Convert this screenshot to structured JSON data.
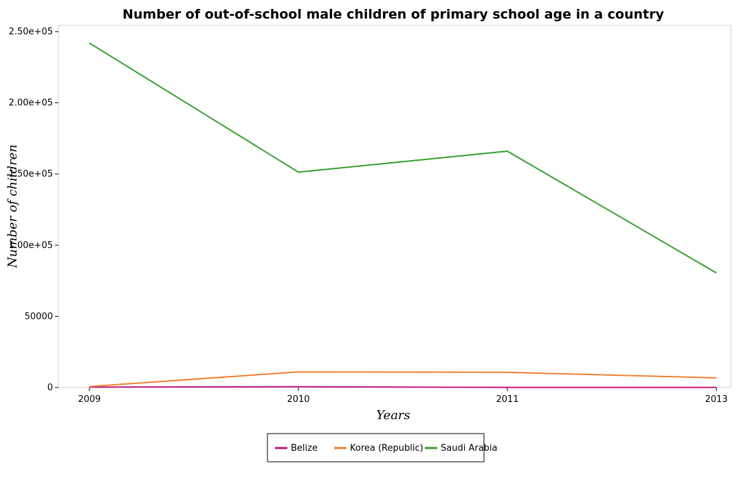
{
  "chart_data": {
    "type": "line",
    "title": "Number of out-of-school male children of primary school age in a country",
    "xlabel": "Years",
    "ylabel": "Number of children",
    "categories": [
      "2009",
      "2010",
      "2011",
      "2013"
    ],
    "ylim": [
      0,
      250000
    ],
    "yticks": [
      0,
      50000,
      100000,
      150000,
      200000,
      250000
    ],
    "ytick_labels": [
      "0",
      "50000",
      "1.00e+05",
      "1.50e+05",
      "2.00e+05",
      "2.50e+05"
    ],
    "grid": false,
    "legend_position": "bottom-center",
    "series": [
      {
        "name": "Belize",
        "color": "#c0187a",
        "values": [
          300,
          600,
          100,
          100
        ]
      },
      {
        "name": "Korea (Republic)",
        "color": "#f08030",
        "values": [
          700,
          11000,
          10700,
          6800
        ]
      },
      {
        "name": "Saudi Arabia",
        "color": "#33a02c",
        "values": [
          242000,
          151300,
          166000,
          80500
        ]
      }
    ]
  }
}
